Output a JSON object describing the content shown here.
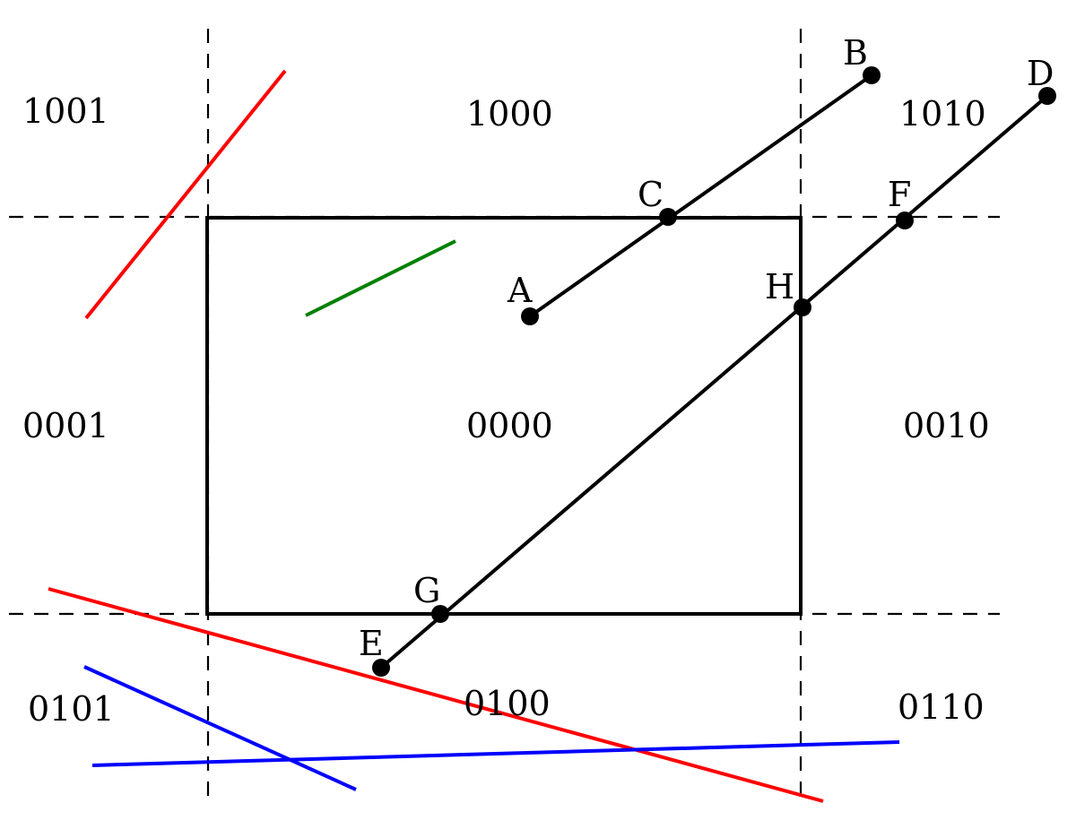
{
  "regions": {
    "r1001": "1001",
    "r1000": "1000",
    "r1010": "1010",
    "r0001": "0001",
    "r0000": "0000",
    "r0010": "0010",
    "r0101": "0101",
    "r0100": "0100",
    "r0110": "0110"
  },
  "points": {
    "A": "A",
    "B": "B",
    "C": "C",
    "D": "D",
    "E": "E",
    "F": "F",
    "G": "G",
    "H": "H"
  },
  "colors": {
    "clipped_out": "#ff0000",
    "inside": "#008000",
    "outside_other": "#0000ff",
    "clipped": "#000000"
  }
}
